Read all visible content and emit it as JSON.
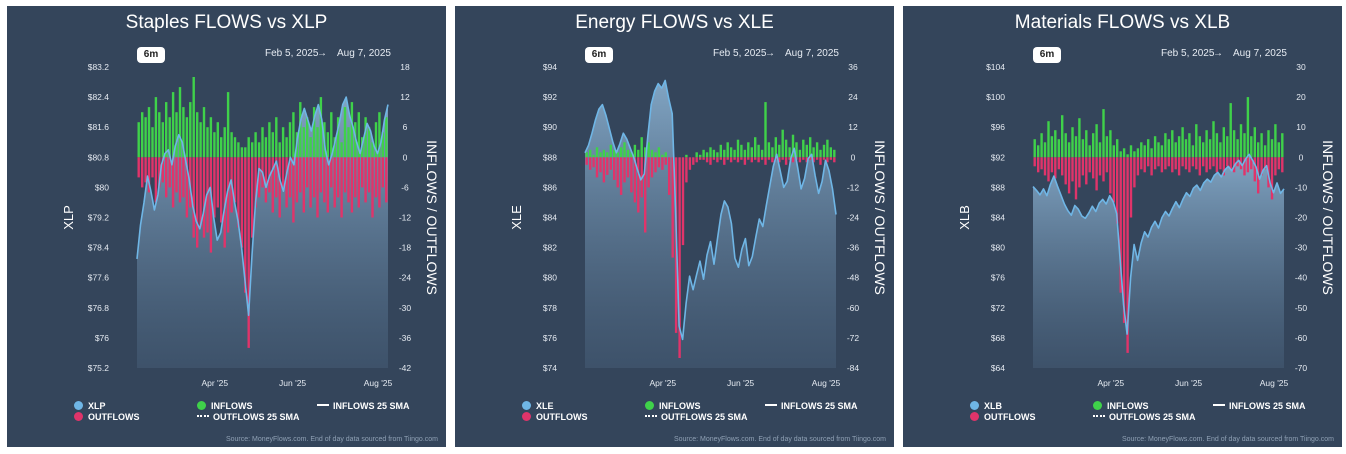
{
  "legend": {
    "inflows": "INFLOWS",
    "outflows": "OUTFLOWS",
    "inflows_sma": "INFLOWS 25 SMA",
    "outflows_sma": "OUTFLOWS 25 SMA"
  },
  "range_button": "6m",
  "date_start": "Feb 5, 2025",
  "date_arrow": "→",
  "date_end": "Aug 7, 2025",
  "source": "Source: MoneyFlows.com. End of day data sourced from Tiingo.com",
  "colors": {
    "background": "#34455b",
    "price": "#6fb6e6",
    "inflow": "#3fd14a",
    "outflow": "#e0346a"
  },
  "chart_data": [
    {
      "type": "line",
      "title": "Staples FLOWS vs XLP",
      "ticker": "XLP",
      "ylabel": "XLP",
      "y2label": "INFLOWS / OUTFLOWS",
      "ylim": [
        75.2,
        83.2
      ],
      "y2lim": [
        -42,
        18
      ],
      "yticks": [
        "$83.2",
        "$82.4",
        "$81.6",
        "$80.8",
        "$80",
        "$79.2",
        "$78.4",
        "$77.6",
        "$76.8",
        "$76",
        "$75.2"
      ],
      "y2ticks": [
        "18",
        "12",
        "6",
        "0",
        "-6",
        "-12",
        "-18",
        "-24",
        "-30",
        "-36",
        "-42"
      ],
      "xticks": [
        "Apr '25",
        "Jun '25",
        "Aug '25"
      ],
      "price": [
        78.1,
        79.0,
        79.6,
        80.3,
        79.9,
        79.4,
        79.8,
        80.6,
        80.9,
        81.0,
        80.6,
        81.1,
        81.4,
        81.2,
        80.7,
        80.2,
        79.5,
        79.1,
        78.9,
        79.3,
        79.8,
        80.0,
        79.2,
        78.6,
        78.8,
        79.4,
        79.9,
        80.2,
        79.6,
        79.1,
        78.4,
        77.5,
        76.6,
        78.2,
        79.6,
        80.5,
        80.4,
        80.0,
        80.3,
        80.5,
        80.7,
        80.2,
        79.9,
        80.4,
        80.8,
        80.6,
        81.3,
        81.8,
        82.1,
        81.8,
        81.5,
        81.9,
        82.2,
        81.8,
        81.0,
        80.6,
        80.9,
        81.3,
        81.7,
        82.2,
        82.4,
        81.9,
        81.6,
        81.2,
        80.9,
        81.3,
        81.7,
        81.5,
        81.1,
        80.9,
        81.2,
        81.8,
        82.2
      ],
      "inflows": [
        7,
        9,
        8,
        10,
        6,
        12,
        9,
        7,
        11,
        8,
        13,
        9,
        14,
        10,
        8,
        11,
        16,
        9,
        7,
        10,
        6,
        8,
        5,
        7,
        4,
        6,
        13,
        5,
        4,
        3,
        2,
        2,
        4,
        3,
        5,
        3,
        6,
        4,
        7,
        5,
        8,
        3,
        6,
        4,
        7,
        9,
        5,
        11,
        6,
        8,
        4,
        10,
        6,
        12,
        7,
        5,
        9,
        4,
        8,
        3,
        10,
        6,
        11,
        7,
        9,
        4,
        8,
        6,
        3,
        7,
        9,
        5,
        8
      ],
      "outflows": [
        -4,
        -6,
        -5,
        -7,
        -4,
        -9,
        -6,
        -5,
        -8,
        -6,
        -10,
        -7,
        -9,
        -8,
        -12,
        -10,
        -16,
        -18,
        -14,
        -16,
        -15,
        -19,
        -12,
        -10,
        -13,
        -18,
        -15,
        -11,
        -9,
        -14,
        -18,
        -27,
        -38,
        -16,
        -10,
        -8,
        -6,
        -9,
        -7,
        -11,
        -8,
        -12,
        -6,
        -10,
        -8,
        -13,
        -9,
        -7,
        -11,
        -6,
        -10,
        -8,
        -12,
        -7,
        -9,
        -11,
        -6,
        -10,
        -8,
        -12,
        -7,
        -9,
        -11,
        -8,
        -10,
        -6,
        -9,
        -7,
        -12,
        -8,
        -10,
        -6,
        -9
      ]
    },
    {
      "type": "line",
      "title": "Energy FLOWS vs XLE",
      "ticker": "XLE",
      "ylabel": "XLE",
      "y2label": "INFLOWS / OUTFLOWS",
      "ylim": [
        74,
        94
      ],
      "y2lim": [
        -84,
        36
      ],
      "yticks": [
        "$94",
        "$92",
        "$90",
        "$88",
        "$86",
        "$84",
        "$82",
        "$80",
        "$78",
        "$76",
        "$74"
      ],
      "y2ticks": [
        "36",
        "24",
        "12",
        "0",
        "-12",
        "-24",
        "-36",
        "-48",
        "-60",
        "-72",
        "-84"
      ],
      "xticks": [
        "Apr '25",
        "Jun '25",
        "Aug '25"
      ],
      "price": [
        88.3,
        88.8,
        89.6,
        90.5,
        91.2,
        91.5,
        90.8,
        89.9,
        89.0,
        88.3,
        88.9,
        89.6,
        89.2,
        88.6,
        88.0,
        87.2,
        86.5,
        86.9,
        89.4,
        91.5,
        92.4,
        92.9,
        92.6,
        93.1,
        91.9,
        90.9,
        84.5,
        76.8,
        75.9,
        78.3,
        80.1,
        79.2,
        80.2,
        81.1,
        79.9,
        81.5,
        82.4,
        80.9,
        82.6,
        84.2,
        85.1,
        84.7,
        83.6,
        81.3,
        80.7,
        81.9,
        82.6,
        80.8,
        81.4,
        82.7,
        83.9,
        83.4,
        84.8,
        86.1,
        87.4,
        88.2,
        87.1,
        86.0,
        86.4,
        87.9,
        88.6,
        87.3,
        85.9,
        86.6,
        87.9,
        88.2,
        86.8,
        85.6,
        86.4,
        87.8,
        87.1,
        85.9,
        84.2
      ],
      "inflows": [
        2,
        3,
        1,
        4,
        2,
        3,
        2,
        5,
        3,
        2,
        4,
        6,
        3,
        2,
        5,
        3,
        8,
        4,
        6,
        3,
        2,
        4,
        1,
        2,
        0,
        0,
        0,
        0,
        0,
        1,
        0,
        0,
        2,
        1,
        3,
        2,
        4,
        3,
        2,
        5,
        3,
        6,
        4,
        3,
        7,
        5,
        3,
        6,
        4,
        8,
        5,
        3,
        22,
        6,
        4,
        8,
        5,
        11,
        7,
        4,
        9,
        6,
        3,
        7,
        5,
        8,
        4,
        6,
        3,
        5,
        7,
        4,
        3
      ],
      "outflows": [
        -3,
        -5,
        -4,
        -8,
        -6,
        -10,
        -7,
        -5,
        -9,
        -12,
        -15,
        -10,
        -8,
        -14,
        -18,
        -22,
        -16,
        -30,
        -12,
        -8,
        -6,
        -4,
        -5,
        -3,
        -15,
        -40,
        -70,
        -80,
        -35,
        -10,
        -5,
        -3,
        -2,
        -1,
        -1,
        -2,
        -3,
        -1,
        -2,
        -1,
        -3,
        -1,
        -2,
        -1,
        -2,
        -1,
        -3,
        -1,
        -2,
        -1,
        -2,
        -1,
        -3,
        -1,
        -2,
        -1,
        -2,
        -1,
        -3,
        -1,
        -2,
        -1,
        -2,
        -1,
        -2,
        -1,
        -2,
        -1,
        -3,
        -1,
        -2,
        -1,
        -2
      ]
    },
    {
      "type": "line",
      "title": "Materials FLOWS vs XLB",
      "ticker": "XLB",
      "ylabel": "XLB",
      "y2label": "INFLOWS / OUTFLOWS",
      "ylim": [
        64,
        104
      ],
      "y2lim": [
        -70,
        30
      ],
      "yticks": [
        "$104",
        "$100",
        "$96",
        "$92",
        "$88",
        "$84",
        "$80",
        "$76",
        "$72",
        "$68",
        "$64"
      ],
      "y2ticks": [
        "30",
        "20",
        "10",
        "0",
        "-10",
        "-20",
        "-30",
        "-40",
        "-50",
        "-60",
        "-70"
      ],
      "xticks": [
        "Apr '25",
        "Jun '25",
        "Aug '25"
      ],
      "price": [
        88.1,
        87.6,
        87.0,
        87.8,
        86.9,
        88.4,
        89.5,
        88.2,
        87.0,
        85.8,
        84.9,
        84.3,
        85.6,
        85.1,
        84.2,
        83.9,
        84.6,
        85.5,
        84.8,
        85.9,
        86.4,
        85.8,
        86.9,
        86.1,
        84.5,
        78.3,
        72.4,
        68.5,
        76.0,
        80.4,
        78.3,
        80.6,
        82.1,
        81.4,
        82.7,
        83.5,
        82.6,
        84.0,
        84.8,
        84.2,
        85.2,
        86.1,
        85.3,
        86.4,
        87.3,
        86.8,
        87.9,
        88.3,
        87.6,
        88.6,
        89.1,
        88.7,
        89.6,
        90.0,
        89.4,
        90.3,
        90.8,
        90.2,
        91.1,
        91.6,
        90.9,
        91.8,
        92.4,
        91.6,
        90.7,
        89.1,
        90.3,
        90.9,
        88.6,
        87.3,
        88.6,
        87.2,
        87.8
      ],
      "inflows": [
        6,
        4,
        8,
        5,
        12,
        7,
        9,
        6,
        14,
        8,
        5,
        10,
        7,
        13,
        6,
        9,
        4,
        8,
        11,
        5,
        16,
        7,
        9,
        4,
        6,
        2,
        3,
        1,
        4,
        2,
        3,
        5,
        4,
        6,
        3,
        7,
        5,
        4,
        8,
        6,
        9,
        5,
        7,
        10,
        6,
        8,
        4,
        11,
        7,
        5,
        9,
        6,
        12,
        8,
        5,
        10,
        7,
        18,
        9,
        6,
        11,
        8,
        20,
        7,
        10,
        5,
        8,
        4,
        9,
        6,
        11,
        5,
        8
      ],
      "outflows": [
        -3,
        -5,
        -4,
        -6,
        -8,
        -5,
        -7,
        -4,
        -6,
        -9,
        -12,
        -8,
        -14,
        -10,
        -6,
        -9,
        -5,
        -7,
        -11,
        -6,
        -8,
        -5,
        -12,
        -15,
        -22,
        -45,
        -55,
        -65,
        -20,
        -10,
        -6,
        -4,
        -5,
        -3,
        -6,
        -4,
        -3,
        -5,
        -4,
        -3,
        -5,
        -4,
        -6,
        -3,
        -4,
        -5,
        -3,
        -4,
        -6,
        -3,
        -5,
        -4,
        -3,
        -5,
        -4,
        -6,
        -3,
        -4,
        -5,
        -3,
        -4,
        -6,
        -5,
        -4,
        -8,
        -12,
        -6,
        -4,
        -10,
        -14,
        -6,
        -4,
        -5
      ]
    }
  ]
}
